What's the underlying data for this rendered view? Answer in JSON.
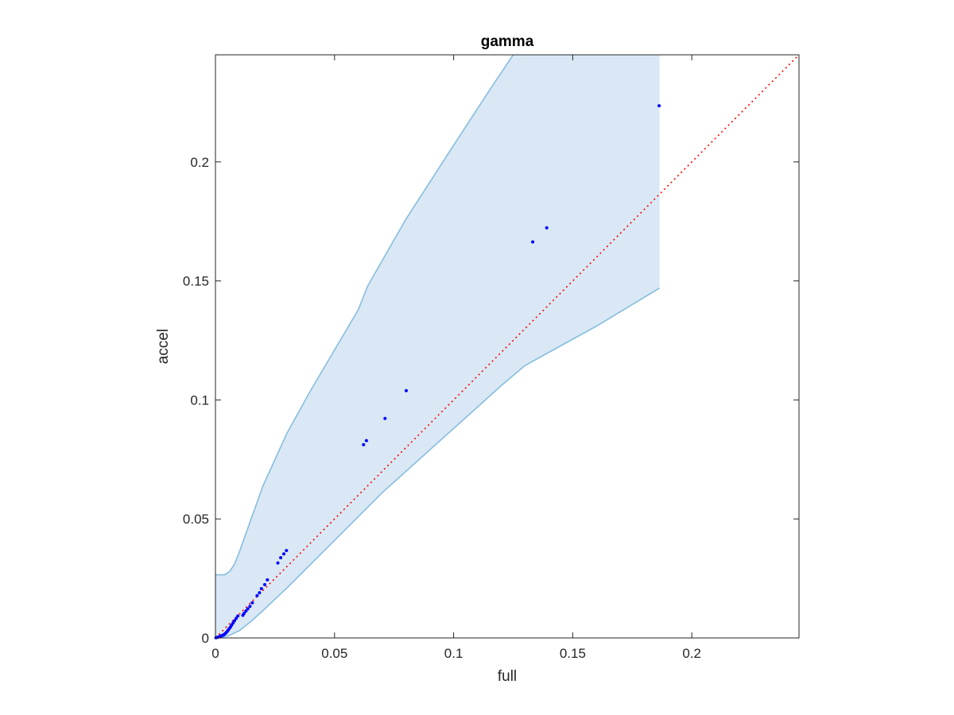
{
  "chart_data": {
    "type": "scatter",
    "title": "gamma",
    "xlabel": "full",
    "ylabel": "accel",
    "xlim": [
      0,
      0.245
    ],
    "ylim": [
      0,
      0.245
    ],
    "xticks": [
      0,
      0.05,
      0.1,
      0.15,
      0.2
    ],
    "yticks": [
      0,
      0.05,
      0.1,
      0.15,
      0.2
    ],
    "xtick_labels": [
      "0",
      "0.05",
      "0.1",
      "0.15",
      "0.2"
    ],
    "ytick_labels": [
      "0",
      "0.05",
      "0.1",
      "0.15",
      "0.2"
    ],
    "grid": false,
    "reference_line": {
      "style": "dotted",
      "color": "#ff0000",
      "from": [
        0,
        0
      ],
      "to": [
        0.245,
        0.245
      ]
    },
    "band": {
      "fill_color": "#d9e8f4",
      "edge_color": "#86bde0",
      "upper": [
        [
          0,
          0.0265
        ],
        [
          0.002,
          0.0265
        ],
        [
          0.004,
          0.0266
        ],
        [
          0.006,
          0.028
        ],
        [
          0.008,
          0.031
        ],
        [
          0.01,
          0.036
        ],
        [
          0.015,
          0.05
        ],
        [
          0.02,
          0.064
        ],
        [
          0.03,
          0.086
        ],
        [
          0.04,
          0.104
        ],
        [
          0.05,
          0.121
        ],
        [
          0.06,
          0.138
        ],
        [
          0.064,
          0.148
        ],
        [
          0.08,
          0.176
        ],
        [
          0.1,
          0.207
        ],
        [
          0.115,
          0.23
        ],
        [
          0.125,
          0.245
        ],
        [
          0.1865,
          0.245
        ]
      ],
      "lower": [
        [
          0,
          0
        ],
        [
          0.005,
          0.0007
        ],
        [
          0.01,
          0.003
        ],
        [
          0.015,
          0.007
        ],
        [
          0.02,
          0.0115
        ],
        [
          0.03,
          0.021
        ],
        [
          0.04,
          0.031
        ],
        [
          0.05,
          0.041
        ],
        [
          0.06,
          0.051
        ],
        [
          0.07,
          0.061
        ],
        [
          0.08,
          0.07
        ],
        [
          0.09,
          0.079
        ],
        [
          0.1,
          0.088
        ],
        [
          0.11,
          0.097
        ],
        [
          0.12,
          0.106
        ],
        [
          0.13,
          0.1145
        ],
        [
          0.14,
          0.12
        ],
        [
          0.16,
          0.131
        ],
        [
          0.1865,
          0.147
        ]
      ]
    },
    "series": [
      {
        "marker": "dot",
        "color": "#0000ff",
        "points": [
          [
            0.0002,
            0.0001
          ],
          [
            0.0006,
            0.0002
          ],
          [
            0.001,
            0.0003
          ],
          [
            0.0014,
            0.0004
          ],
          [
            0.0018,
            0.0006
          ],
          [
            0.0022,
            0.0008
          ],
          [
            0.0026,
            0.0009
          ],
          [
            0.003,
            0.0011
          ],
          [
            0.0034,
            0.0013
          ],
          [
            0.0038,
            0.0016
          ],
          [
            0.0043,
            0.002
          ],
          [
            0.0048,
            0.0026
          ],
          [
            0.0053,
            0.0032
          ],
          [
            0.0058,
            0.0039
          ],
          [
            0.0063,
            0.0046
          ],
          [
            0.0068,
            0.0054
          ],
          [
            0.0074,
            0.0063
          ],
          [
            0.008,
            0.0072
          ],
          [
            0.0087,
            0.0082
          ],
          [
            0.0094,
            0.0092
          ],
          [
            0.0115,
            0.0095
          ],
          [
            0.012,
            0.0103
          ],
          [
            0.0128,
            0.0113
          ],
          [
            0.0136,
            0.0122
          ],
          [
            0.0145,
            0.0133
          ],
          [
            0.0155,
            0.0148
          ],
          [
            0.0175,
            0.0178
          ],
          [
            0.0185,
            0.019
          ],
          [
            0.0193,
            0.0207
          ],
          [
            0.0207,
            0.0224
          ],
          [
            0.0218,
            0.0244
          ],
          [
            0.0262,
            0.0315
          ],
          [
            0.0274,
            0.0337
          ],
          [
            0.0287,
            0.0353
          ],
          [
            0.0298,
            0.0367
          ],
          [
            0.0622,
            0.0812
          ],
          [
            0.0634,
            0.0829
          ],
          [
            0.0712,
            0.0922
          ],
          [
            0.0801,
            0.1039
          ],
          [
            0.1332,
            0.1664
          ],
          [
            0.1391,
            0.1723
          ],
          [
            0.1863,
            0.2236
          ]
        ]
      }
    ]
  }
}
